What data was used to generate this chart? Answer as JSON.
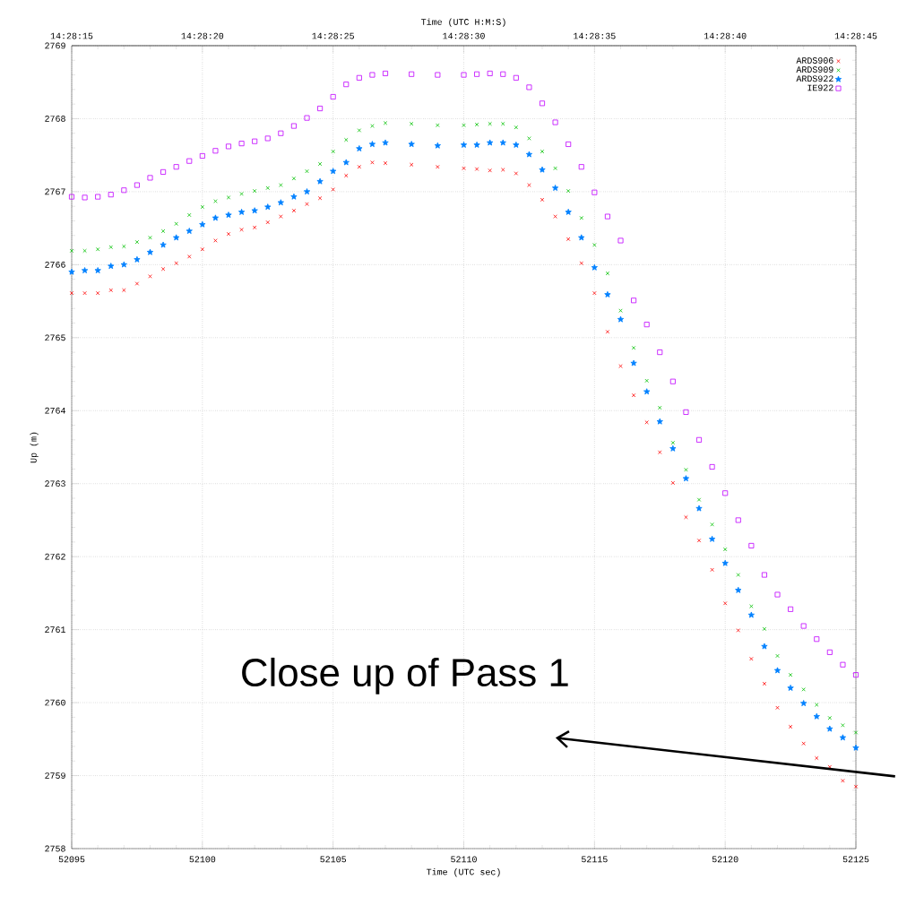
{
  "chart_data": {
    "type": "scatter",
    "xlabel": "Time (UTC sec)",
    "ylabel": "Up (m)",
    "x2label": "Time (UTC H:M:S)",
    "xlim": [
      52095,
      52125
    ],
    "ylim": [
      2758,
      2769
    ],
    "xticks": [
      52095,
      52100,
      52105,
      52110,
      52115,
      52120,
      52125
    ],
    "yticks": [
      2758,
      2759,
      2760,
      2761,
      2762,
      2763,
      2764,
      2765,
      2766,
      2767,
      2768,
      2769
    ],
    "x2lim": [
      52095,
      52125
    ],
    "x2ticks": [
      {
        "value": 52095,
        "label": "14:28:15"
      },
      {
        "value": 52100,
        "label": "14:28:20"
      },
      {
        "value": 52105,
        "label": "14:28:25"
      },
      {
        "value": 52110,
        "label": "14:28:30"
      },
      {
        "value": 52115,
        "label": "14:28:35"
      },
      {
        "value": 52120,
        "label": "14:28:40"
      },
      {
        "value": 52125,
        "label": "14:28:45"
      }
    ],
    "grid": true,
    "legend": "top right",
    "annotations": [
      "Close up of Pass 1"
    ],
    "x": [
      52095,
      52095.5,
      52096,
      52096.5,
      52097,
      52097.5,
      52098,
      52098.5,
      52099,
      52099.5,
      52100,
      52100.5,
      52101,
      52101.5,
      52102,
      52102.5,
      52103,
      52103.5,
      52104,
      52104.5,
      52105,
      52105.5,
      52106,
      52106.5,
      52107,
      52108,
      52109,
      52110,
      52110.5,
      52111,
      52111.5,
      52112,
      52112.5,
      52113,
      52113.5,
      52114,
      52114.5,
      52115,
      52115.5,
      52116,
      52116.5,
      52117,
      52117.5,
      52118,
      52118.5,
      52119,
      52119.5,
      52120,
      52120.5,
      52121,
      52121.5,
      52122,
      52122.5,
      52123,
      52123.5,
      52124,
      52124.5,
      52125
    ],
    "series": [
      {
        "name": "ARDS906",
        "color": "#ff0000",
        "marker": "cross",
        "values": [
          2765.61,
          2765.61,
          2765.61,
          2765.65,
          2765.65,
          2765.74,
          2765.84,
          2765.94,
          2766.02,
          2766.11,
          2766.21,
          2766.33,
          2766.42,
          2766.48,
          2766.51,
          2766.58,
          2766.66,
          2766.74,
          2766.83,
          2766.91,
          2767.03,
          2767.22,
          2767.34,
          2767.4,
          2767.39,
          2767.37,
          2767.34,
          2767.32,
          2767.31,
          2767.29,
          2767.3,
          2767.25,
          2767.09,
          2766.89,
          2766.66,
          2766.35,
          2766.02,
          2765.61,
          2765.08,
          2764.61,
          2764.21,
          2763.84,
          2763.43,
          2763.01,
          2762.54,
          2762.22,
          2761.82,
          2761.36,
          2760.99,
          2760.6,
          2760.26,
          2759.93,
          2759.67,
          2759.44,
          2759.24,
          2759.12,
          2758.93,
          2758.85
        ]
      },
      {
        "name": "ARDS909",
        "color": "#00c000",
        "marker": "cross",
        "values": [
          2766.19,
          2766.19,
          2766.21,
          2766.24,
          2766.25,
          2766.31,
          2766.37,
          2766.46,
          2766.56,
          2766.68,
          2766.79,
          2766.87,
          2766.92,
          2766.97,
          2767.01,
          2767.05,
          2767.09,
          2767.18,
          2767.28,
          2767.38,
          2767.55,
          2767.71,
          2767.84,
          2767.9,
          2767.94,
          2767.93,
          2767.91,
          2767.91,
          2767.92,
          2767.93,
          2767.93,
          2767.88,
          2767.73,
          2767.55,
          2767.32,
          2767.01,
          2766.64,
          2766.27,
          2765.88,
          2765.37,
          2764.86,
          2764.41,
          2764.04,
          2763.56,
          2763.19,
          2762.78,
          2762.44,
          2762.1,
          2761.75,
          2761.32,
          2761.01,
          2760.64,
          2760.38,
          2760.18,
          2759.97,
          2759.79,
          2759.69,
          2759.59
        ]
      },
      {
        "name": "ARDS922",
        "color": "#0080ff",
        "marker": "star",
        "values": [
          2765.9,
          2765.92,
          2765.92,
          2765.98,
          2766.0,
          2766.07,
          2766.17,
          2766.27,
          2766.37,
          2766.46,
          2766.55,
          2766.64,
          2766.68,
          2766.72,
          2766.74,
          2766.79,
          2766.85,
          2766.93,
          2767.0,
          2767.14,
          2767.28,
          2767.4,
          2767.59,
          2767.65,
          2767.67,
          2767.65,
          2767.63,
          2767.64,
          2767.64,
          2767.67,
          2767.67,
          2767.64,
          2767.51,
          2767.3,
          2767.05,
          2766.72,
          2766.37,
          2765.96,
          2765.59,
          2765.25,
          2764.65,
          2764.26,
          2763.85,
          2763.48,
          2763.07,
          2762.66,
          2762.24,
          2761.91,
          2761.54,
          2761.2,
          2760.77,
          2760.44,
          2760.2,
          2759.99,
          2759.81,
          2759.64,
          2759.52,
          2759.38
        ]
      },
      {
        "name": "IE922",
        "color": "#c000ff",
        "marker": "square",
        "values": [
          2766.93,
          2766.92,
          2766.93,
          2766.96,
          2767.02,
          2767.09,
          2767.19,
          2767.27,
          2767.34,
          2767.42,
          2767.49,
          2767.56,
          2767.62,
          2767.66,
          2767.69,
          2767.73,
          2767.8,
          2767.9,
          2768.01,
          2768.14,
          2768.3,
          2768.47,
          2768.56,
          2768.6,
          2768.62,
          2768.61,
          2768.6,
          2768.6,
          2768.61,
          2768.62,
          2768.61,
          2768.56,
          2768.43,
          2768.21,
          2767.95,
          2767.65,
          2767.34,
          2766.99,
          2766.66,
          2766.33,
          2765.51,
          2765.18,
          2764.8,
          2764.4,
          2763.98,
          2763.6,
          2763.23,
          2762.87,
          2762.5,
          2762.15,
          2761.75,
          2761.48,
          2761.28,
          2761.05,
          2760.87,
          2760.69,
          2760.52,
          2760.38
        ]
      }
    ]
  }
}
